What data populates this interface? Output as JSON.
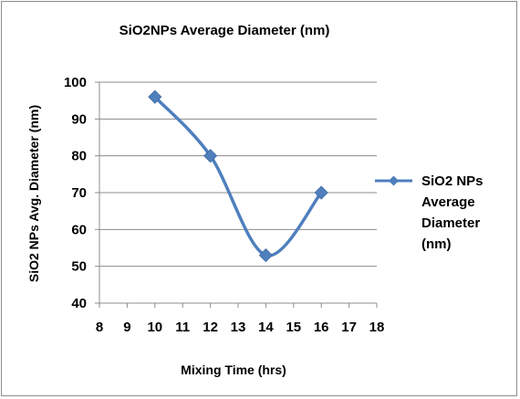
{
  "chart_data": {
    "type": "line",
    "title": "SiO2NPs Average Diameter (nm)",
    "xlabel": "Mixing Time (hrs)",
    "ylabel": "SiO2 NPs Avg. Diameter (nm)",
    "xlim": [
      8,
      18
    ],
    "ylim": [
      40,
      100
    ],
    "xticks": [
      8,
      9,
      10,
      11,
      12,
      13,
      14,
      15,
      16,
      17,
      18
    ],
    "yticks": [
      40,
      50,
      60,
      70,
      80,
      90,
      100
    ],
    "grid": "horizontal",
    "smooth": true,
    "legend_position": "right",
    "series": [
      {
        "name": "SiO2 NPs Average Diameter (nm)",
        "legend_lines": [
          "SiO2 NPs",
          "Average",
          "Diameter",
          "(nm)"
        ],
        "color": "#4f7fbd",
        "marker": "diamond",
        "x": [
          10,
          12,
          14,
          16
        ],
        "y": [
          96,
          80,
          53,
          70
        ]
      }
    ]
  }
}
